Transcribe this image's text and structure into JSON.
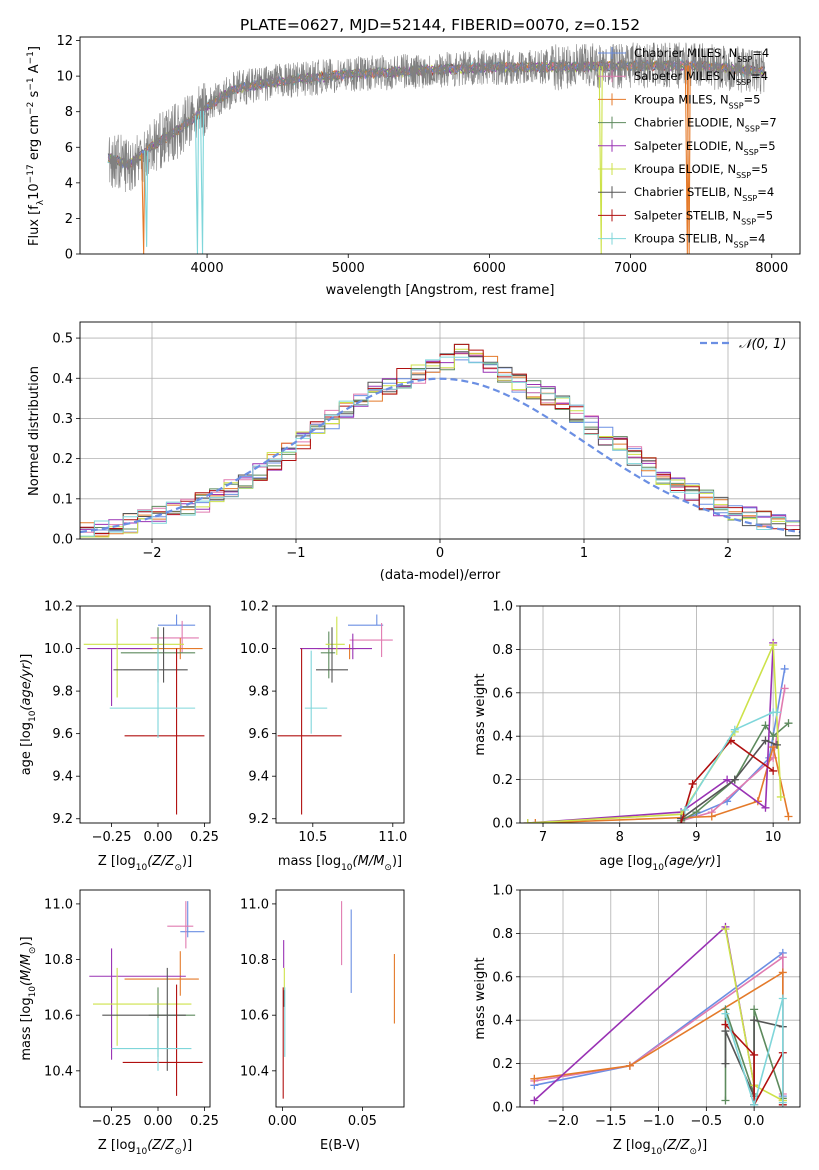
{
  "title": "PLATE=0627, MJD=52144, FIBERID=0070, z=0.152",
  "series_names": [
    "Chabrier MILES, N_SSP=4",
    "Salpeter MILES, N_SSP=4",
    "Kroupa MILES, N_SSP=5",
    "Chabrier ELODIE, N_SSP=7",
    "Salpeter ELODIE, N_SSP=5",
    "Kroupa ELODIE, N_SSP=5",
    "Chabrier STELIB, N_SSP=4",
    "Salpeter STELIB, N_SSP=5",
    "Kroupa STELIB, N_SSP=4"
  ],
  "series_colors": [
    "#6b8fe3",
    "#e07bb0",
    "#e47a2a",
    "#5d8a5d",
    "#9932b4",
    "#cde24a",
    "#555555",
    "#b01010",
    "#7fd6da"
  ],
  "normal_label": "𝒩(0, 1)",
  "chart_data": [
    {
      "type": "line",
      "title": "PLATE=0627, MJD=52144, FIBERID=0070, z=0.152",
      "xlabel": "wavelength [Angstrom, rest frame]",
      "ylabel": "Flux [f_λ 10^-17 erg cm^-2 s^-1 A^-1]",
      "xlim": [
        3100,
        8200
      ],
      "ylim": [
        0,
        12.2
      ],
      "xticks": [
        4000,
        5000,
        6000,
        7000,
        8000
      ],
      "yticks": [
        0,
        2,
        4,
        6,
        8,
        10,
        12
      ],
      "data_color": "#808080",
      "legend": "top-right",
      "continuum": {
        "x": [
          3300,
          3450,
          3600,
          3800,
          3950,
          4000,
          4200,
          4500,
          5000,
          5500,
          6000,
          6500,
          7000,
          7500,
          8000
        ],
        "y": [
          5.4,
          5.0,
          6.0,
          7.0,
          7.9,
          8.3,
          9.3,
          9.7,
          10.1,
          10.3,
          10.5,
          10.5,
          10.6,
          10.6,
          10.2
        ]
      },
      "features": [
        {
          "x": 3551,
          "y": 0,
          "series": 2
        },
        {
          "x": 3572,
          "y": 0.4,
          "series": 8
        },
        {
          "x": 3932,
          "y": 0,
          "series": 8
        },
        {
          "x": 3968,
          "y": 0,
          "series": 8
        },
        {
          "x": 6792,
          "y": 0,
          "series": 5
        },
        {
          "x": 7402,
          "y": 0,
          "series": 2
        },
        {
          "x": 7415,
          "y": 0,
          "series": 2
        }
      ],
      "grid": false
    },
    {
      "type": "histogram",
      "xlabel": "(data-model)/error",
      "ylabel": "Normed distribution",
      "xlim": [
        -2.5,
        2.5
      ],
      "ylim": [
        0,
        0.54
      ],
      "xticks": [
        -2,
        -1,
        0,
        1,
        2
      ],
      "yticks": [
        0.0,
        0.1,
        0.2,
        0.3,
        0.4,
        0.5
      ],
      "bin_start": -2.5,
      "bin_width": 0.1,
      "base": [
        0.02,
        0.025,
        0.03,
        0.04,
        0.05,
        0.06,
        0.068,
        0.08,
        0.092,
        0.108,
        0.125,
        0.145,
        0.17,
        0.195,
        0.22,
        0.245,
        0.27,
        0.295,
        0.32,
        0.345,
        0.368,
        0.385,
        0.4,
        0.41,
        0.425,
        0.445,
        0.47,
        0.455,
        0.43,
        0.415,
        0.39,
        0.37,
        0.355,
        0.335,
        0.31,
        0.285,
        0.255,
        0.23,
        0.205,
        0.18,
        0.155,
        0.135,
        0.115,
        0.097,
        0.082,
        0.068,
        0.055,
        0.045,
        0.036,
        0.03
      ],
      "grid": true,
      "legend": "top-right"
    },
    {
      "type": "errorbar",
      "xlabel": "Z [log10(Z/Z☉)]",
      "ylabel": "age  [log10(age/yr)]",
      "xlim": [
        -0.42,
        0.28
      ],
      "ylim": [
        9.18,
        10.2
      ],
      "xticks": [
        -0.25,
        0.0,
        0.25
      ],
      "yticks": [
        9.2,
        9.4,
        9.6,
        9.8,
        10.0,
        10.2
      ],
      "points": [
        {
          "x": 0.1,
          "y": 10.11,
          "xerr": [
            0.1,
            0.1
          ],
          "yerr": [
            0.0,
            0.05
          ],
          "series": 0
        },
        {
          "x": 0.13,
          "y": 10.05,
          "xerr": [
            0.17,
            0.09
          ],
          "yerr": [
            0.07,
            0.08
          ],
          "series": 1
        },
        {
          "x": 0.12,
          "y": 10.0,
          "xerr": [
            0.27,
            0.12
          ],
          "yerr": [
            0.05,
            0.05
          ],
          "series": 2
        },
        {
          "x": 0.0,
          "y": 9.98,
          "xerr": [
            0.2,
            0.2
          ],
          "yerr": [
            0.14,
            0.12
          ],
          "series": 3
        },
        {
          "x": -0.25,
          "y": 10.0,
          "xerr": [
            0.13,
            0.22
          ],
          "yerr": [
            0.27,
            0.0
          ],
          "series": 4
        },
        {
          "x": -0.22,
          "y": 10.02,
          "xerr": [
            0.18,
            0.36
          ],
          "yerr": [
            0.25,
            0.12
          ],
          "series": 5
        },
        {
          "x": 0.03,
          "y": 9.9,
          "xerr": [
            0.27,
            0.13
          ],
          "yerr": [
            0.06,
            0.2
          ],
          "series": 6
        },
        {
          "x": 0.1,
          "y": 9.59,
          "xerr": [
            0.28,
            0.15
          ],
          "yerr": [
            0.37,
            0.41
          ],
          "series": 7
        },
        {
          "x": 0.0,
          "y": 9.72,
          "xerr": [
            0.26,
            0.2
          ],
          "yerr": [
            0.14,
            0.28
          ],
          "series": 8
        }
      ]
    },
    {
      "type": "errorbar",
      "xlabel": "mass [log10(M/M☉)]",
      "ylabel": "",
      "xlim": [
        10.27,
        11.07
      ],
      "ylim": [
        9.18,
        10.2
      ],
      "xticks": [
        10.5,
        11.0
      ],
      "yticks": [
        9.2,
        9.4,
        9.6,
        9.8,
        10.0,
        10.2
      ],
      "points": [
        {
          "x": 10.9,
          "y": 10.11,
          "xerr": [
            0.18,
            0.04
          ],
          "yerr": [
            0.0,
            0.05
          ],
          "series": 0
        },
        {
          "x": 10.93,
          "y": 10.04,
          "xerr": [
            0.2,
            0.07
          ],
          "yerr": [
            0.08,
            0.08
          ],
          "series": 1
        },
        {
          "x": 10.73,
          "y": 10.0,
          "xerr": [
            0.2,
            0.04
          ],
          "yerr": [
            0.05,
            0.02
          ],
          "series": 2
        },
        {
          "x": 10.6,
          "y": 9.98,
          "xerr": [
            0.05,
            0.04
          ],
          "yerr": [
            0.12,
            0.1
          ],
          "series": 3
        },
        {
          "x": 10.75,
          "y": 10.0,
          "xerr": [
            0.33,
            0.12
          ],
          "yerr": [
            0.05,
            0.07
          ],
          "series": 4
        },
        {
          "x": 10.65,
          "y": 10.02,
          "xerr": [
            0.07,
            0.05
          ],
          "yerr": [
            0.05,
            0.13
          ],
          "series": 5
        },
        {
          "x": 10.62,
          "y": 9.9,
          "xerr": [
            0.1,
            0.1
          ],
          "yerr": [
            0.06,
            0.2
          ],
          "series": 6
        },
        {
          "x": 10.43,
          "y": 9.59,
          "xerr": [
            0.15,
            0.25
          ],
          "yerr": [
            0.37,
            0.41
          ],
          "series": 7
        },
        {
          "x": 10.49,
          "y": 9.72,
          "xerr": [
            0.04,
            0.1
          ],
          "yerr": [
            0.12,
            0.27
          ],
          "series": 8
        }
      ]
    },
    {
      "type": "line",
      "xlabel": "age  [log10(age/yr)]",
      "ylabel": "mass weight",
      "xlim": [
        6.7,
        10.35
      ],
      "ylim": [
        0,
        1
      ],
      "xticks": [
        7,
        8,
        9,
        10
      ],
      "yticks": [
        0.0,
        0.2,
        0.4,
        0.6,
        0.8,
        1.0
      ],
      "grid": true,
      "series": [
        {
          "x": [
            8.8,
            9.4,
            9.95,
            10.15
          ],
          "y": [
            0.01,
            0.1,
            0.3,
            0.71
          ],
          "series": 0
        },
        {
          "x": [
            8.8,
            9.2,
            10.0,
            10.15
          ],
          "y": [
            0.01,
            0.05,
            0.3,
            0.62
          ],
          "series": 1
        },
        {
          "x": [
            6.9,
            9.2,
            9.8,
            10.0,
            10.2
          ],
          "y": [
            0.0,
            0.03,
            0.1,
            0.35,
            0.03
          ],
          "series": 2
        },
        {
          "x": [
            8.8,
            9.0,
            9.5,
            9.9,
            10.0,
            10.2
          ],
          "y": [
            0.01,
            0.05,
            0.2,
            0.45,
            0.4,
            0.46
          ],
          "series": 3
        },
        {
          "x": [
            6.8,
            8.8,
            9.4,
            9.9,
            10.0
          ],
          "y": [
            0.0,
            0.05,
            0.2,
            0.07,
            0.83
          ],
          "series": 4
        },
        {
          "x": [
            6.8,
            8.8,
            9.5,
            10.0,
            10.1
          ],
          "y": [
            0.0,
            0.04,
            0.42,
            0.82,
            0.12
          ],
          "series": 5
        },
        {
          "x": [
            8.8,
            9.5,
            9.9,
            10.05
          ],
          "y": [
            0.02,
            0.2,
            0.38,
            0.36
          ],
          "series": 6
        },
        {
          "x": [
            8.8,
            8.95,
            9.45,
            10.0
          ],
          "y": [
            0.0,
            0.18,
            0.38,
            0.24
          ],
          "series": 7
        },
        {
          "x": [
            8.85,
            9.5,
            10.0,
            10.05
          ],
          "y": [
            0.06,
            0.43,
            0.51,
            0.51
          ],
          "series": 8
        }
      ]
    },
    {
      "type": "errorbar",
      "xlabel": "Z [log10(Z/Z☉)]",
      "ylabel": "mass [log10(M/M☉)]",
      "xlim": [
        -0.42,
        0.28
      ],
      "ylim": [
        10.27,
        11.05
      ],
      "xticks": [
        -0.25,
        0.0,
        0.25
      ],
      "yticks": [
        10.4,
        10.6,
        10.8,
        11.0
      ],
      "points": [
        {
          "x": 0.16,
          "y": 10.9,
          "xerr": [
            0.04,
            0.09
          ],
          "yerr": [
            0.02,
            0.11
          ],
          "series": 0
        },
        {
          "x": 0.15,
          "y": 10.92,
          "xerr": [
            0.1,
            0.04
          ],
          "yerr": [
            0.08,
            0.09
          ],
          "series": 1
        },
        {
          "x": 0.12,
          "y": 10.73,
          "xerr": [
            0.3,
            0.1
          ],
          "yerr": [
            0.06,
            0.1
          ],
          "series": 2
        },
        {
          "x": 0.0,
          "y": 10.6,
          "xerr": [
            0.05,
            0.2
          ],
          "yerr": [
            0.15,
            0.1
          ],
          "series": 3
        },
        {
          "x": -0.25,
          "y": 10.74,
          "xerr": [
            0.12,
            0.4
          ],
          "yerr": [
            0.3,
            0.1
          ],
          "series": 4
        },
        {
          "x": -0.22,
          "y": 10.64,
          "xerr": [
            0.13,
            0.4
          ],
          "yerr": [
            0.15,
            0.13
          ],
          "series": 5
        },
        {
          "x": 0.05,
          "y": 10.6,
          "xerr": [
            0.35,
            0.1
          ],
          "yerr": [
            0.2,
            0.17
          ],
          "series": 6
        },
        {
          "x": 0.1,
          "y": 10.43,
          "xerr": [
            0.29,
            0.14
          ],
          "yerr": [
            0.12,
            0.28
          ],
          "series": 7
        },
        {
          "x": 0.0,
          "y": 10.48,
          "xerr": [
            0.25,
            0.18
          ],
          "yerr": [
            0.08,
            0.11
          ],
          "series": 8
        }
      ]
    },
    {
      "type": "errorbar",
      "xlabel": "E(B-V)",
      "ylabel": "",
      "xlim": [
        -0.004,
        0.076
      ],
      "ylim": [
        10.27,
        11.05
      ],
      "xticks": [
        0.0,
        0.05
      ],
      "xtick_labels": [
        "0.00",
        "0.05"
      ],
      "yticks": [
        10.4,
        10.6,
        10.8,
        11.0
      ],
      "points": [
        {
          "x": 0.043,
          "y": 10.83,
          "xerr": [
            0,
            0
          ],
          "yerr": [
            0.15,
            0.15
          ],
          "series": 0
        },
        {
          "x": 0.037,
          "y": 10.9,
          "xerr": [
            0,
            0
          ],
          "yerr": [
            0.12,
            0.11
          ],
          "series": 1
        },
        {
          "x": 0.07,
          "y": 10.7,
          "xerr": [
            0,
            0
          ],
          "yerr": [
            0.13,
            0.12
          ],
          "series": 2
        },
        {
          "x": 0.0008,
          "y": 10.82,
          "xerr": [
            0,
            0
          ],
          "yerr": [
            0.05,
            0.05
          ],
          "series": 4
        },
        {
          "x": 0.0012,
          "y": 10.72,
          "xerr": [
            0,
            0
          ],
          "yerr": [
            0.07,
            0.05
          ],
          "series": 5
        },
        {
          "x": 0.001,
          "y": 10.66,
          "xerr": [
            0,
            0
          ],
          "yerr": [
            0.03,
            0.03
          ],
          "series": 6
        },
        {
          "x": 0.0005,
          "y": 10.4,
          "xerr": [
            0,
            0
          ],
          "yerr": [
            0.1,
            0.3
          ],
          "series": 7
        },
        {
          "x": 0.0015,
          "y": 10.55,
          "xerr": [
            0,
            0
          ],
          "yerr": [
            0.1,
            0.15
          ],
          "series": 8
        }
      ]
    },
    {
      "type": "line",
      "xlabel": "Z [log10(Z/Z☉)]",
      "ylabel": "mass weight",
      "xlim": [
        -2.45,
        0.48
      ],
      "ylim": [
        0,
        1
      ],
      "xticks": [
        -2.0,
        -1.5,
        -1.0,
        -0.5,
        0.0
      ],
      "yticks": [
        0.0,
        0.2,
        0.4,
        0.6,
        0.8,
        1.0
      ],
      "grid": true,
      "series": [
        {
          "x": [
            -2.3,
            -1.3,
            0.3,
            0.3
          ],
          "y": [
            0.1,
            0.19,
            0.71,
            0.05
          ],
          "series": 0
        },
        {
          "x": [
            -2.3,
            -1.3,
            0.3,
            0.3
          ],
          "y": [
            0.12,
            0.19,
            0.69,
            0.06
          ],
          "series": 1
        },
        {
          "x": [
            -2.3,
            -1.3,
            0.3,
            0.3
          ],
          "y": [
            0.13,
            0.19,
            0.62,
            0.03
          ],
          "series": 2
        },
        {
          "x": [
            -0.3,
            -0.3,
            0.0,
            0.0,
            0.3
          ],
          "y": [
            0.03,
            0.45,
            0.06,
            0.45,
            0.04
          ],
          "series": 3
        },
        {
          "x": [
            -2.3,
            -0.3,
            0.0
          ],
          "y": [
            0.03,
            0.83,
            0.1
          ],
          "series": 4
        },
        {
          "x": [
            -0.3,
            0.0,
            0.3
          ],
          "y": [
            0.82,
            0.1,
            0.03
          ],
          "series": 5
        },
        {
          "x": [
            -0.3,
            -0.3,
            0.0,
            0.0,
            0.3
          ],
          "y": [
            0.2,
            0.35,
            0.05,
            0.4,
            0.37
          ],
          "series": 6
        },
        {
          "x": [
            -0.3,
            0.0,
            0.0,
            0.3,
            0.3
          ],
          "y": [
            0.38,
            0.24,
            0.01,
            0.25,
            0.01
          ],
          "series": 7
        },
        {
          "x": [
            -0.3,
            0.0,
            0.3,
            0.3
          ],
          "y": [
            0.43,
            0.01,
            0.5,
            0.02
          ],
          "series": 8
        }
      ]
    }
  ]
}
